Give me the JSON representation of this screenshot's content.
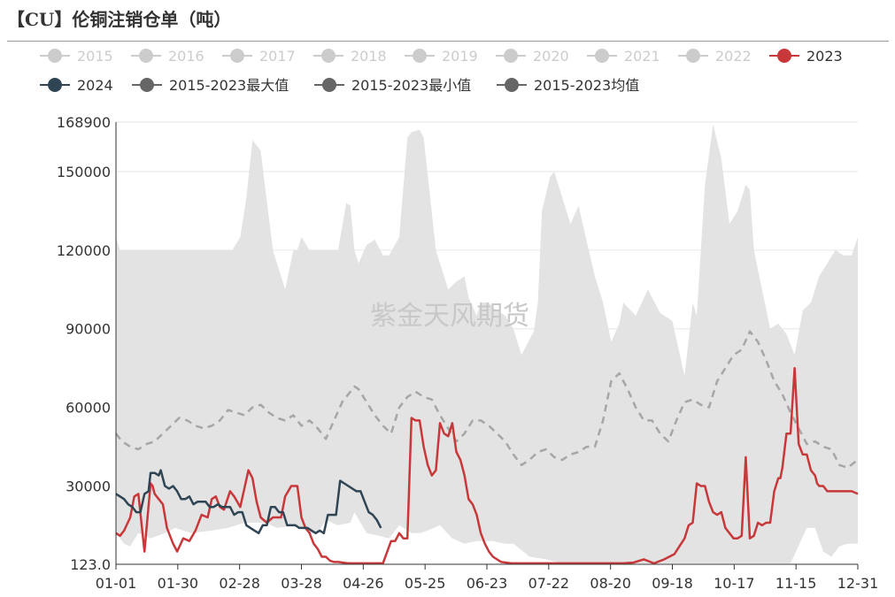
{
  "title": "【CU】伦铜注销仓单（吨）",
  "watermark": "紫金天风期货",
  "colors": {
    "band": "#e3e3e3",
    "legend_inactive": "#cccccc",
    "series_2023": "#c8383a",
    "series_2024": "#2f4554",
    "series_avg": "#a6a6a6",
    "legend_minmax": "#666666",
    "grid": "#e6e6e6",
    "axis": "#333333"
  },
  "chart_data": {
    "type": "line",
    "xlabel": "",
    "ylabel": "",
    "x_ticks": [
      "01-01",
      "01-30",
      "02-28",
      "03-28",
      "04-26",
      "05-25",
      "06-23",
      "07-22",
      "08-20",
      "09-18",
      "10-17",
      "11-15",
      "12-31"
    ],
    "y_ticks": [
      123.0,
      30000,
      60000,
      90000,
      120000,
      150000,
      168900
    ],
    "y_tick_labels": [
      "123.0",
      "30000",
      "60000",
      "90000",
      "120000",
      "150000",
      "168900"
    ],
    "ylim": [
      123.0,
      168900
    ],
    "grid": true,
    "legend_position": "top",
    "legend": [
      {
        "name": "2015",
        "active": false
      },
      {
        "name": "2016",
        "active": false
      },
      {
        "name": "2017",
        "active": false
      },
      {
        "name": "2018",
        "active": false
      },
      {
        "name": "2019",
        "active": false
      },
      {
        "name": "2020",
        "active": false
      },
      {
        "name": "2021",
        "active": false
      },
      {
        "name": "2022",
        "active": false
      },
      {
        "name": "2023",
        "active": true
      },
      {
        "name": "2024",
        "active": true
      },
      {
        "name": "2015-2023最大值",
        "active": true
      },
      {
        "name": "2015-2023最小值",
        "active": true
      },
      {
        "name": "2015-2023均值",
        "active": true
      }
    ],
    "series": [
      {
        "name": "2015-2023最大值",
        "style": "band-upper",
        "x": [
          1,
          3,
          5,
          8,
          12,
          18,
          30,
          45,
          55,
          58,
          62,
          65,
          68,
          72,
          74,
          78,
          84,
          88,
          90,
          92,
          96,
          100,
          110,
          114,
          116,
          118,
          120,
          124,
          128,
          132,
          135,
          140,
          144,
          146,
          150,
          152,
          158,
          160,
          164,
          168,
          172,
          174,
          178,
          180,
          184,
          186,
          192,
          196,
          200,
          206,
          208,
          210,
          214,
          216,
          220,
          224,
          228,
          230,
          236,
          240,
          244,
          248,
          250,
          256,
          262,
          268,
          274,
          280,
          284,
          286,
          290,
          294,
          298,
          302,
          306,
          310,
          312,
          314,
          318,
          322,
          326,
          330,
          334,
          338,
          342,
          346,
          350,
          354,
          358,
          362,
          365
        ],
        "values": [
          125000,
          120000,
          120000,
          120000,
          120000,
          120000,
          120000,
          120000,
          120000,
          120000,
          125000,
          140000,
          162000,
          158000,
          145000,
          120000,
          105000,
          120000,
          120000,
          125000,
          120000,
          120000,
          120000,
          138000,
          137000,
          120000,
          115000,
          122000,
          124000,
          118000,
          118000,
          125000,
          163000,
          165000,
          166000,
          163000,
          120000,
          115000,
          105000,
          108000,
          110000,
          102000,
          95000,
          100000,
          100000,
          98000,
          95000,
          90000,
          80000,
          89000,
          100000,
          135000,
          148000,
          150000,
          140000,
          130000,
          137000,
          130000,
          110000,
          100000,
          85000,
          92000,
          100000,
          95000,
          105000,
          96000,
          93000,
          72000,
          100000,
          95000,
          145000,
          168000,
          155000,
          130000,
          135000,
          145000,
          143000,
          120000,
          105000,
          90000,
          92000,
          88000,
          80000,
          97000,
          100000,
          110000,
          115000,
          120000,
          118000,
          118000,
          125000
        ]
      },
      {
        "name": "2015-2023最小值",
        "style": "band-lower",
        "x": [
          1,
          5,
          8,
          12,
          18,
          25,
          30,
          38,
          48,
          56,
          64,
          74,
          80,
          90,
          96,
          100,
          104,
          110,
          116,
          118,
          124,
          130,
          135,
          140,
          146,
          150,
          154,
          160,
          166,
          172,
          178,
          184,
          186,
          192,
          196,
          204,
          208,
          212,
          220,
          228,
          236,
          244,
          252,
          260,
          268,
          276,
          284,
          292,
          300,
          308,
          316,
          324,
          332,
          340,
          344,
          348,
          352,
          356,
          360,
          365
        ],
        "values": [
          12000,
          8000,
          7000,
          12000,
          10000,
          12000,
          14000,
          12000,
          13000,
          14000,
          16000,
          16000,
          14000,
          15000,
          12000,
          12000,
          17000,
          15000,
          16000,
          20000,
          12000,
          11000,
          10000,
          15000,
          12000,
          12000,
          13000,
          15000,
          10000,
          8000,
          9000,
          9000,
          9000,
          8000,
          8000,
          3000,
          2500,
          2000,
          500,
          500,
          500,
          500,
          500,
          500,
          500,
          500,
          500,
          500,
          500,
          500,
          500,
          500,
          500,
          14000,
          14000,
          5000,
          3000,
          7000,
          8000,
          8000
        ]
      },
      {
        "name": "2015-2023均值",
        "style": "dashed",
        "x": [
          1,
          4,
          8,
          12,
          16,
          20,
          24,
          28,
          32,
          36,
          40,
          44,
          48,
          52,
          56,
          60,
          64,
          68,
          72,
          76,
          80,
          84,
          88,
          92,
          96,
          100,
          104,
          108,
          112,
          116,
          118,
          120,
          124,
          128,
          132,
          136,
          140,
          144,
          148,
          152,
          156,
          160,
          164,
          168,
          172,
          176,
          180,
          184,
          188,
          192,
          196,
          200,
          204,
          208,
          212,
          216,
          220,
          224,
          228,
          232,
          236,
          240,
          244,
          248,
          252,
          256,
          260,
          264,
          268,
          272,
          276,
          280,
          284,
          288,
          292,
          296,
          300,
          304,
          308,
          312,
          316,
          320,
          324,
          328,
          332,
          336,
          340,
          344,
          348,
          352,
          356,
          360,
          365
        ],
        "values": [
          50000,
          47000,
          45000,
          44000,
          46000,
          47000,
          50000,
          53000,
          56000,
          55000,
          53000,
          52000,
          53000,
          55000,
          59000,
          58000,
          57000,
          60000,
          61000,
          58000,
          56000,
          55000,
          57000,
          53000,
          55000,
          52000,
          48000,
          55000,
          62000,
          66000,
          68000,
          67000,
          62000,
          57000,
          53000,
          50000,
          60000,
          64000,
          66000,
          64000,
          63000,
          57000,
          52000,
          47000,
          50000,
          55000,
          55000,
          53000,
          50000,
          47000,
          42000,
          38000,
          40000,
          43000,
          44000,
          41000,
          40000,
          42000,
          43000,
          45000,
          45000,
          55000,
          70000,
          73000,
          67000,
          60000,
          55000,
          55000,
          50000,
          47000,
          55000,
          62000,
          63000,
          61000,
          60000,
          70000,
          75000,
          80000,
          82000,
          89000,
          85000,
          78000,
          70000,
          65000,
          58000,
          52000,
          46000,
          47000,
          45000,
          44000,
          38000,
          37000,
          40000
        ]
      },
      {
        "name": "2023",
        "style": "solid",
        "x": [
          1,
          3,
          5,
          8,
          10,
          12,
          15,
          18,
          19,
          20,
          22,
          24,
          26,
          29,
          31,
          34,
          37,
          40,
          43,
          46,
          48,
          50,
          52,
          54,
          57,
          59,
          62,
          64,
          66,
          68,
          70,
          72,
          75,
          78,
          82,
          84,
          87,
          88,
          90,
          92,
          94,
          96,
          98,
          100,
          102,
          104,
          106,
          108,
          110,
          112,
          114,
          116,
          118,
          120,
          124,
          128,
          132,
          136,
          138,
          140,
          142,
          144,
          146,
          148,
          150,
          152,
          154,
          156,
          158,
          160,
          162,
          164,
          166,
          168,
          170,
          172,
          174,
          176,
          178,
          180,
          182,
          184,
          186,
          190,
          195,
          200,
          205,
          210,
          215,
          220,
          225,
          230,
          235,
          240,
          245,
          250,
          255,
          260,
          265,
          270,
          275,
          280,
          282,
          284,
          286,
          288,
          290,
          292,
          294,
          296,
          298,
          300,
          302,
          304,
          306,
          308,
          310,
          312,
          314,
          316,
          318,
          320,
          322,
          324,
          326,
          327,
          328,
          330,
          332,
          334,
          336,
          338,
          340,
          342,
          344,
          345,
          346,
          347,
          348,
          350,
          352,
          354,
          356,
          358,
          360,
          362,
          365
        ],
        "values": [
          12000,
          11000,
          13000,
          18000,
          26000,
          27000,
          5000,
          31000,
          30000,
          27000,
          25000,
          23000,
          14000,
          8000,
          5000,
          10000,
          9000,
          13000,
          19000,
          18000,
          25000,
          26000,
          22000,
          21000,
          28000,
          26000,
          22000,
          29000,
          36000,
          33000,
          24000,
          18000,
          16000,
          18000,
          18000,
          26000,
          30000,
          30000,
          30000,
          18000,
          14000,
          12000,
          8000,
          6000,
          3000,
          3000,
          1500,
          1000,
          1000,
          800,
          600,
          500,
          500,
          500,
          500,
          500,
          500,
          9000,
          9000,
          12000,
          10000,
          10000,
          56000,
          55000,
          55000,
          45000,
          38000,
          34000,
          36000,
          54000,
          50000,
          49000,
          54000,
          43000,
          40000,
          34000,
          25000,
          23000,
          19000,
          12000,
          8000,
          5000,
          3000,
          1000,
          500,
          500,
          500,
          500,
          500,
          500,
          500,
          500,
          500,
          500,
          500,
          500,
          800,
          2000,
          500,
          2000,
          4000,
          10000,
          15000,
          16000,
          31000,
          30000,
          30000,
          24000,
          20000,
          19000,
          20000,
          14000,
          12000,
          10000,
          10000,
          11000,
          41000,
          10000,
          11000,
          16000,
          15000,
          16000,
          16000,
          28000,
          33000,
          33000,
          37000,
          50000,
          50000,
          75000,
          46000,
          42000,
          42000,
          36000,
          34000,
          31000,
          30000,
          30000,
          30000,
          28000,
          28000,
          28000,
          28000,
          28000,
          28000,
          28000,
          27000
        ]
      },
      {
        "name": "2024",
        "style": "solid",
        "x": [
          1,
          3,
          5,
          7,
          9,
          11,
          13,
          15,
          17,
          18,
          20,
          22,
          23,
          25,
          27,
          29,
          31,
          33,
          35,
          37,
          39,
          41,
          43,
          45,
          47,
          49,
          51,
          53,
          55,
          57,
          59,
          61,
          63,
          65,
          67,
          69,
          71,
          73,
          75,
          77,
          79,
          81,
          83,
          85,
          87,
          89,
          91,
          93,
          95,
          97,
          99,
          101,
          103,
          105,
          107,
          109,
          111,
          113,
          115,
          117,
          119,
          121,
          123,
          125,
          127,
          129,
          131
        ],
        "values": [
          27000,
          26000,
          25000,
          23000,
          22000,
          20000,
          20000,
          27000,
          28000,
          35000,
          35000,
          34000,
          36000,
          30000,
          29000,
          30000,
          28000,
          25000,
          25000,
          26000,
          23000,
          24000,
          24000,
          24000,
          22000,
          22000,
          23000,
          22000,
          22000,
          22000,
          19000,
          20000,
          20000,
          15000,
          14000,
          13000,
          12000,
          15000,
          15000,
          22000,
          22000,
          20000,
          20000,
          15000,
          15000,
          15000,
          14000,
          14000,
          14000,
          13000,
          12000,
          13000,
          12000,
          19000,
          19000,
          19000,
          32000,
          31000,
          30000,
          29000,
          28000,
          28000,
          24000,
          20000,
          19000,
          17000,
          14000
        ]
      }
    ]
  }
}
